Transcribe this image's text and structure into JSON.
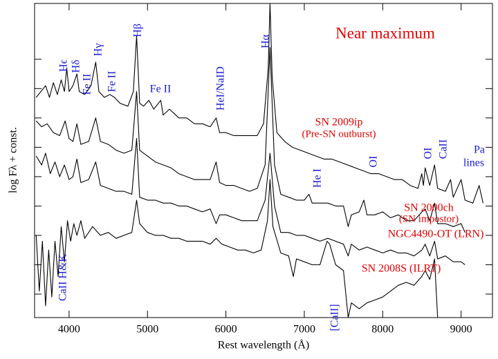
{
  "chart_data": {
    "type": "line",
    "title": "Near maximum",
    "xlabel": "Rest wavelength (Å)",
    "ylabel": "log Fλ + const.",
    "xlim": [
      3560,
      9400
    ],
    "ylim": [
      -0.8,
      9.9
    ],
    "xticks": [
      4000,
      5000,
      6000,
      7000,
      8000,
      9000
    ],
    "yticks": [
      0,
      1,
      2,
      3,
      4,
      5,
      6,
      7,
      8
    ],
    "series": [
      {
        "name": "SN 2009ip",
        "color": "#000000",
        "x": [
          3580,
          3700,
          3750,
          3800,
          3850,
          3900,
          3940,
          3970,
          4000,
          4050,
          4100,
          4130,
          4200,
          4280,
          4340,
          4380,
          4450,
          4520,
          4580,
          4650,
          4750,
          4820,
          4861,
          4900,
          4950,
          5018,
          5080,
          5169,
          5200,
          5280,
          5400,
          5500,
          5600,
          5700,
          5800,
          5876,
          5920,
          6000,
          6100,
          6200,
          6300,
          6400,
          6480,
          6540,
          6563,
          6590,
          6650,
          6750,
          6850,
          6950,
          7050,
          7150,
          7250,
          7350,
          7450,
          7550,
          7650,
          7750,
          7850,
          7950,
          8050,
          8150,
          8250,
          8350,
          8450,
          8498,
          8520,
          8542,
          8600,
          8662,
          8700,
          8800,
          8865,
          8900,
          9000,
          9050,
          9150,
          9230,
          9280
        ],
        "values": [
          6.7,
          7.1,
          6.7,
          7.2,
          6.8,
          7.3,
          6.9,
          7.7,
          6.9,
          7.1,
          7.5,
          6.9,
          6.8,
          7.1,
          7.9,
          6.9,
          6.7,
          6.8,
          6.7,
          6.5,
          6.4,
          6.9,
          8.8,
          6.5,
          6.4,
          6.6,
          6.3,
          6.6,
          6.1,
          6.3,
          6.0,
          6.0,
          5.8,
          5.8,
          5.7,
          6.0,
          5.5,
          5.5,
          5.4,
          5.4,
          5.4,
          5.4,
          5.8,
          7.7,
          9.9,
          7.4,
          5.5,
          5.2,
          5.0,
          4.9,
          4.8,
          4.7,
          4.6,
          4.6,
          4.5,
          4.4,
          4.3,
          4.2,
          4.1,
          4.1,
          4.0,
          3.9,
          3.9,
          3.7,
          3.6,
          4.1,
          3.7,
          4.3,
          3.7,
          4.4,
          3.6,
          3.5,
          3.9,
          3.3,
          3.9,
          3.2,
          3.1,
          3.7,
          3.1
        ]
      },
      {
        "name": "SN 2000ch",
        "color": "#000000",
        "x": [
          3580,
          3650,
          3720,
          3800,
          3880,
          3950,
          4000,
          4050,
          4100,
          4150,
          4250,
          4340,
          4400,
          4500,
          4600,
          4700,
          4800,
          4861,
          4900,
          5000,
          5100,
          5200,
          5300,
          5400,
          5500,
          5600,
          5700,
          5800,
          5876,
          5920,
          6000,
          6100,
          6200,
          6300,
          6400,
          6500,
          6563,
          6620,
          6700,
          6800,
          6900,
          7000,
          7060,
          7100,
          7200,
          7300,
          7400,
          7500,
          7560,
          7600,
          7700,
          7760,
          7800,
          7900,
          8000,
          8100,
          8200,
          8300,
          8400,
          8500,
          8542,
          8600,
          8662,
          8700,
          8800,
          8900,
          9000,
          9050
        ],
        "values": [
          5.9,
          5.7,
          5.8,
          5.5,
          5.4,
          5.9,
          5.3,
          5.2,
          5.8,
          5.1,
          5.2,
          6.0,
          5.2,
          5.1,
          4.9,
          4.8,
          4.9,
          6.9,
          4.9,
          4.7,
          4.5,
          4.4,
          4.3,
          4.1,
          4.0,
          3.9,
          3.9,
          3.9,
          4.5,
          3.8,
          3.7,
          3.7,
          3.6,
          3.5,
          3.6,
          4.4,
          8.4,
          4.4,
          3.4,
          3.3,
          3.2,
          3.2,
          3.4,
          3.1,
          3.1,
          3.1,
          3.0,
          3.0,
          2.3,
          2.7,
          2.8,
          3.2,
          2.7,
          2.7,
          2.8,
          2.6,
          2.7,
          2.5,
          2.5,
          2.8,
          2.9,
          2.5,
          3.1,
          2.4,
          2.4,
          2.3,
          2.4,
          2.1
        ]
      },
      {
        "name": "NGC4490-OT (LRN)",
        "color": "#000000",
        "x": [
          3580,
          3650,
          3700,
          3760,
          3820,
          3880,
          3940,
          4000,
          4050,
          4100,
          4150,
          4250,
          4340,
          4400,
          4500,
          4600,
          4700,
          4800,
          4861,
          4900,
          5000,
          5100,
          5200,
          5300,
          5400,
          5500,
          5600,
          5700,
          5800,
          5876,
          5920,
          6000,
          6100,
          6200,
          6300,
          6400,
          6500,
          6563,
          6620,
          6700,
          6800,
          6900,
          7000,
          7100,
          7200,
          7300,
          7400,
          7500,
          7560,
          7600,
          7700,
          7800,
          7900,
          8000,
          8100,
          8200,
          8300,
          8400,
          8500,
          8542,
          8600,
          8662,
          8700,
          8800,
          8900,
          9000,
          9050
        ],
        "values": [
          4.7,
          4.4,
          4.8,
          4.1,
          4.5,
          4.0,
          4.4,
          3.9,
          4.0,
          4.6,
          3.8,
          3.9,
          4.5,
          3.7,
          3.6,
          3.5,
          3.5,
          3.4,
          5.3,
          3.3,
          3.2,
          3.2,
          3.1,
          3.1,
          3.0,
          3.0,
          2.9,
          2.8,
          2.9,
          2.4,
          2.7,
          2.7,
          2.6,
          2.5,
          2.5,
          2.5,
          3.2,
          4.8,
          3.0,
          2.1,
          2.1,
          2.0,
          2.0,
          1.9,
          1.8,
          1.9,
          1.8,
          1.7,
          1.3,
          1.7,
          1.5,
          1.6,
          1.5,
          1.4,
          1.5,
          1.4,
          1.4,
          1.3,
          1.5,
          1.7,
          1.3,
          1.8,
          1.2,
          1.3,
          1.1,
          1.1,
          1.0
        ]
      },
      {
        "name": "SN 2008S (ILRT)",
        "color": "#000000",
        "x": [
          3580,
          3620,
          3660,
          3700,
          3740,
          3780,
          3820,
          3860,
          3900,
          3940,
          3980,
          4020,
          4060,
          4100,
          4150,
          4200,
          4300,
          4400,
          4500,
          4600,
          4700,
          4800,
          4861,
          4900,
          5000,
          5100,
          5200,
          5300,
          5400,
          5500,
          5600,
          5700,
          5800,
          5876,
          5950,
          6050,
          6150,
          6250,
          6350,
          6450,
          6530,
          6563,
          6600,
          6700,
          6800,
          6860,
          6900,
          7000,
          7100,
          7200,
          7291,
          7323,
          7400,
          7500,
          7560,
          7600,
          7700,
          7800,
          7900,
          8000,
          8100,
          8200,
          8300,
          8400,
          8498,
          8542,
          8600,
          8662,
          8700
        ],
        "values": [
          2.0,
          0.1,
          1.8,
          -0.4,
          1.5,
          -0.1,
          1.8,
          0.6,
          2.3,
          1.1,
          2.5,
          1.8,
          2.4,
          2.0,
          2.5,
          1.9,
          2.3,
          2.0,
          2.1,
          1.9,
          2.0,
          2.1,
          3.2,
          2.4,
          2.1,
          2.0,
          2.0,
          1.9,
          1.9,
          1.8,
          1.8,
          1.8,
          1.7,
          1.9,
          1.7,
          1.6,
          1.5,
          1.5,
          1.4,
          1.5,
          2.5,
          3.9,
          2.3,
          1.4,
          1.3,
          0.6,
          1.2,
          1.1,
          1.0,
          1.0,
          1.8,
          1.7,
          1.0,
          0.8,
          -0.8,
          -0.3,
          -0.5,
          -0.3,
          -0.2,
          -0.1,
          0.1,
          0.3,
          0.4,
          0.3,
          0.6,
          0.8,
          0.5,
          1.2,
          -0.8
        ]
      }
    ],
    "series_notes": [
      "(Pre-SN outburst)",
      "(SN impostor)"
    ],
    "line_labels": [
      "Hϵ",
      "Hδ",
      "Fe II",
      "Hγ",
      "Fe II",
      "Hβ",
      "Fe II",
      "HeI/NaID",
      "Hα",
      "He I",
      "OI",
      "OI",
      "CaII",
      "Pa",
      "lines",
      "CaII H&K",
      "[CaII]"
    ]
  }
}
